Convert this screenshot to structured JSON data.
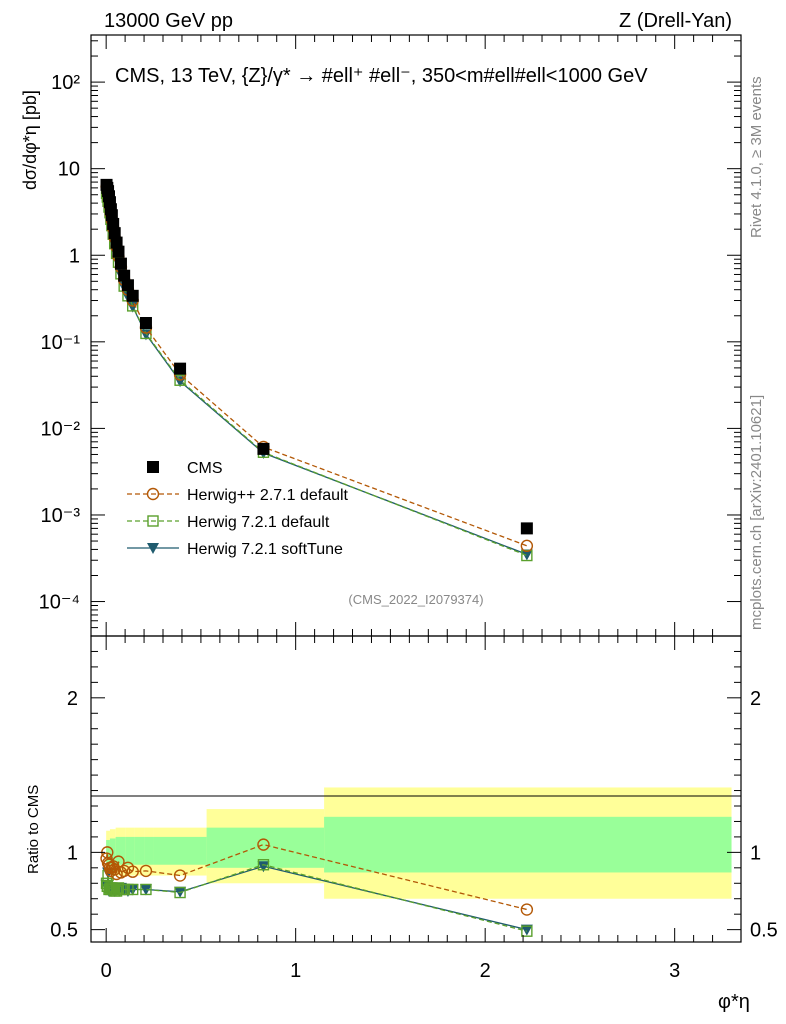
{
  "header": {
    "left": "13000 GeV pp",
    "right": "Z (Drell-Yan)"
  },
  "side_labels": {
    "rivet": "Rivet 4.1.0, ≥ 3M events",
    "mcplots": "mcplots.cern.ch [arXiv:2401.10621]"
  },
  "colors": {
    "cms": "#000000",
    "herwigpp": "#b35806",
    "herwig721_default": "#5aa02c",
    "herwig721_soft": "#1f5b6e",
    "band_outer": "#ffff99",
    "band_inner": "#99ff99"
  },
  "chart_data": [
    {
      "type": "scatter",
      "panel": "main",
      "title": "CMS, 13 TeV, {Z}/γ* → #ell⁺ #ell⁻, 350<m#ell#ell<1000 GeV",
      "watermark": "(CMS_2022_I2079374)",
      "ylabel": "dσ/dφ*η [pb]",
      "yscale": "log",
      "ylim": [
        4e-05,
        350
      ],
      "xlim": [
        -0.08,
        3.35
      ],
      "ytick_labels": [
        "10⁻⁴",
        "10⁻³",
        "10⁻²",
        "10⁻¹",
        "1",
        "10",
        "10²"
      ],
      "legend": [
        "CMS",
        "Herwig++ 2.7.1 default",
        "Herwig 7.2.1 default",
        "Herwig 7.2.1 softTune"
      ],
      "legend_position": "middle-left",
      "x": [
        0.002,
        0.006,
        0.01,
        0.015,
        0.02,
        0.025,
        0.03,
        0.037,
        0.045,
        0.055,
        0.065,
        0.078,
        0.095,
        0.115,
        0.14,
        0.21,
        0.39,
        0.83,
        2.22
      ],
      "series": [
        {
          "name": "CMS",
          "marker": "square-filled",
          "values": [
            6.5,
            6.0,
            5.5,
            4.8,
            4.1,
            3.4,
            2.9,
            2.3,
            1.8,
            1.4,
            1.1,
            0.8,
            0.58,
            0.45,
            0.34,
            0.165,
            0.049,
            0.0058,
            0.0007
          ]
        },
        {
          "name": "Herwig++ 2.7.1 default",
          "marker": "circle-open",
          "values": [
            6.2,
            5.7,
            5.1,
            4.4,
            3.7,
            3.05,
            2.55,
            2.05,
            1.6,
            1.25,
            0.97,
            0.73,
            0.52,
            0.4,
            0.3,
            0.146,
            0.042,
            0.0061,
            0.00044
          ]
        },
        {
          "name": "Herwig 7.2.1 default",
          "marker": "square-open",
          "values": [
            5.2,
            4.7,
            4.2,
            3.6,
            3.1,
            2.6,
            2.2,
            1.75,
            1.36,
            1.05,
            0.83,
            0.61,
            0.44,
            0.34,
            0.26,
            0.125,
            0.036,
            0.0053,
            0.00034
          ]
        },
        {
          "name": "Herwig 7.2.1 softTune",
          "marker": "triangle-down-filled",
          "values": [
            5.1,
            4.6,
            4.15,
            3.55,
            3.05,
            2.55,
            2.15,
            1.72,
            1.34,
            1.04,
            0.82,
            0.6,
            0.43,
            0.33,
            0.255,
            0.122,
            0.035,
            0.0052,
            0.00035
          ]
        }
      ]
    },
    {
      "type": "line",
      "panel": "ratio",
      "ylabel": "Ratio to CMS",
      "xlabel": "φ*η",
      "ylim": [
        0.42,
        2.4
      ],
      "xlim": [
        -0.08,
        3.35
      ],
      "ytick_labels": [
        "0.5",
        "1",
        "2"
      ],
      "xtick_labels": [
        "0",
        "1",
        "2",
        "3"
      ],
      "bands": [
        {
          "x": [
            0.0,
            0.02,
            0.05,
            0.1,
            0.15,
            0.2,
            0.25,
            0.53,
            1.15,
            3.3
          ],
          "outer": [
            [
              0.86,
              1.14
            ],
            [
              0.855,
              1.15
            ],
            [
              0.85,
              1.16
            ],
            [
              0.85,
              1.16
            ],
            [
              0.85,
              1.16
            ],
            [
              0.85,
              1.16
            ],
            [
              0.85,
              1.16
            ],
            [
              0.8,
              1.28
            ],
            [
              0.7,
              1.42
            ]
          ],
          "inner": [
            [
              0.92,
              1.08
            ],
            [
              0.92,
              1.09
            ],
            [
              0.92,
              1.1
            ],
            [
              0.92,
              1.1
            ],
            [
              0.92,
              1.1
            ],
            [
              0.92,
              1.1
            ],
            [
              0.92,
              1.1
            ],
            [
              0.9,
              1.16
            ],
            [
              0.87,
              1.23
            ]
          ]
        }
      ],
      "x": [
        0.002,
        0.006,
        0.01,
        0.015,
        0.02,
        0.025,
        0.03,
        0.037,
        0.045,
        0.055,
        0.065,
        0.078,
        0.095,
        0.115,
        0.14,
        0.21,
        0.39,
        0.83,
        2.22
      ],
      "series": [
        {
          "name": "Herwig++ 2.7.1 default",
          "values": [
            0.96,
            1.0,
            0.93,
            0.92,
            0.9,
            0.88,
            0.9,
            0.91,
            0.89,
            0.86,
            0.94,
            0.87,
            0.88,
            0.9,
            0.875,
            0.88,
            0.85,
            1.05,
            0.63
          ]
        },
        {
          "name": "Herwig 7.2.1 default",
          "values": [
            0.8,
            0.78,
            0.85,
            0.76,
            0.77,
            0.76,
            0.77,
            0.76,
            0.75,
            0.75,
            0.77,
            0.76,
            0.76,
            0.76,
            0.76,
            0.76,
            0.74,
            0.92,
            0.49
          ]
        },
        {
          "name": "Herwig 7.2.1 softTune",
          "values": [
            0.79,
            0.77,
            0.87,
            0.75,
            0.76,
            0.75,
            0.76,
            0.76,
            0.75,
            0.76,
            0.76,
            0.77,
            0.76,
            0.75,
            0.76,
            0.76,
            0.745,
            0.91,
            0.5
          ]
        }
      ]
    }
  ]
}
